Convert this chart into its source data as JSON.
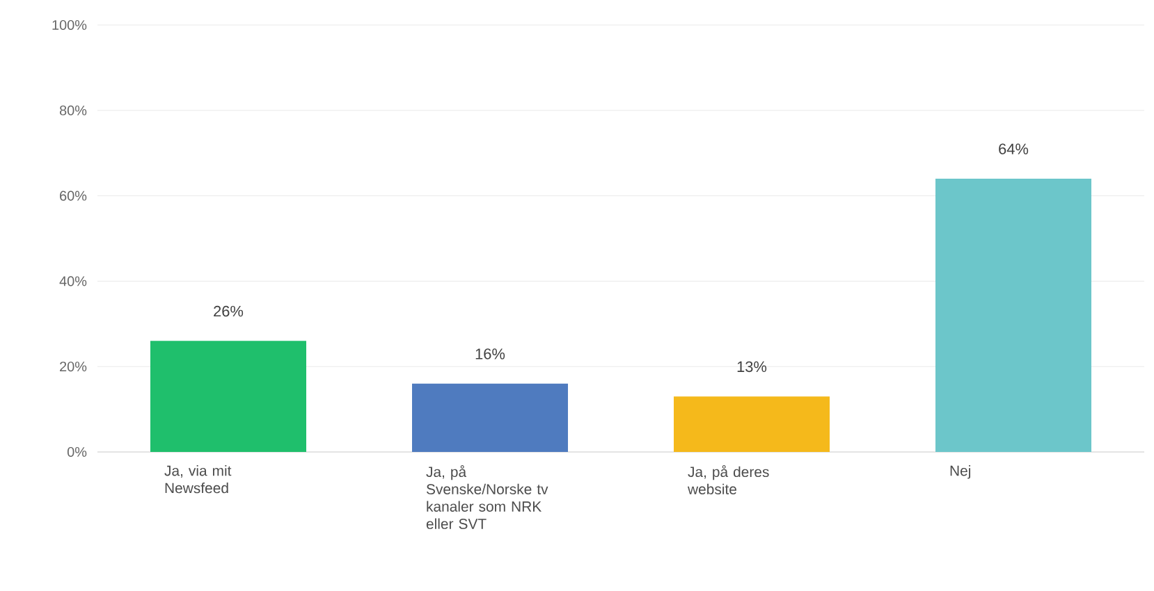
{
  "chart_data": {
    "type": "bar",
    "categories": [
      "Ja, via mit Newsfeed",
      "Ja, på Svenske/Norske tv kanaler som NRK eller SVT",
      "Ja, på deres website",
      "Nej"
    ],
    "values": [
      26,
      16,
      13,
      64
    ],
    "value_labels": [
      "26%",
      "16%",
      "13%",
      "64%"
    ],
    "colors": [
      "#1fbf6c",
      "#4f7bbf",
      "#f5b91b",
      "#6cc6ca"
    ],
    "ylim": [
      0,
      100
    ],
    "yticks": [
      {
        "value": 0,
        "label": "0%"
      },
      {
        "value": 20,
        "label": "20%"
      },
      {
        "value": 40,
        "label": "40%"
      },
      {
        "value": 60,
        "label": "60%"
      },
      {
        "value": 80,
        "label": "80%"
      },
      {
        "value": 100,
        "label": "100%"
      }
    ],
    "grid": "y"
  }
}
